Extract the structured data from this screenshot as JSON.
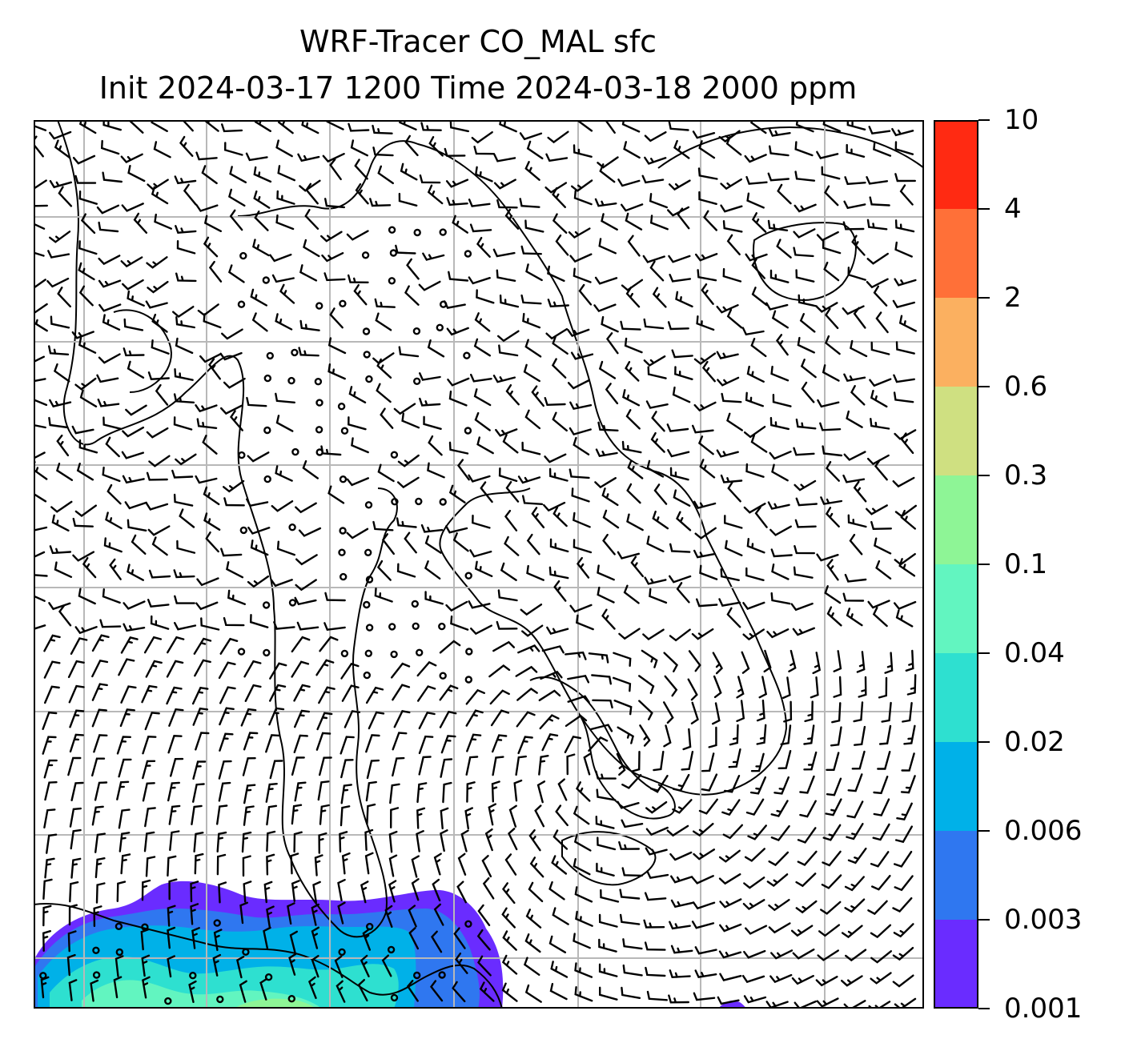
{
  "title": {
    "line1": "WRF-Tracer CO_MAL sfc",
    "line2": "Init 2024-03-17 1200 Time 2024-03-18 2000 ppm"
  },
  "colorbar": {
    "levels": [
      "0.001",
      "0.003",
      "0.006",
      "0.02",
      "0.04",
      "0.1",
      "0.3",
      "0.6",
      "2",
      "4",
      "10"
    ],
    "colors": [
      "#6a2cff",
      "#2f77f0",
      "#00b1e8",
      "#2ee0d0",
      "#62f5c0",
      "#8ef596",
      "#cfe081",
      "#fbb060",
      "#ff7038",
      "#ff2a12"
    ]
  },
  "map": {
    "gridlines": "on",
    "field": "CO_MAL surface tracer concentration (ppm) with wind barbs"
  }
}
